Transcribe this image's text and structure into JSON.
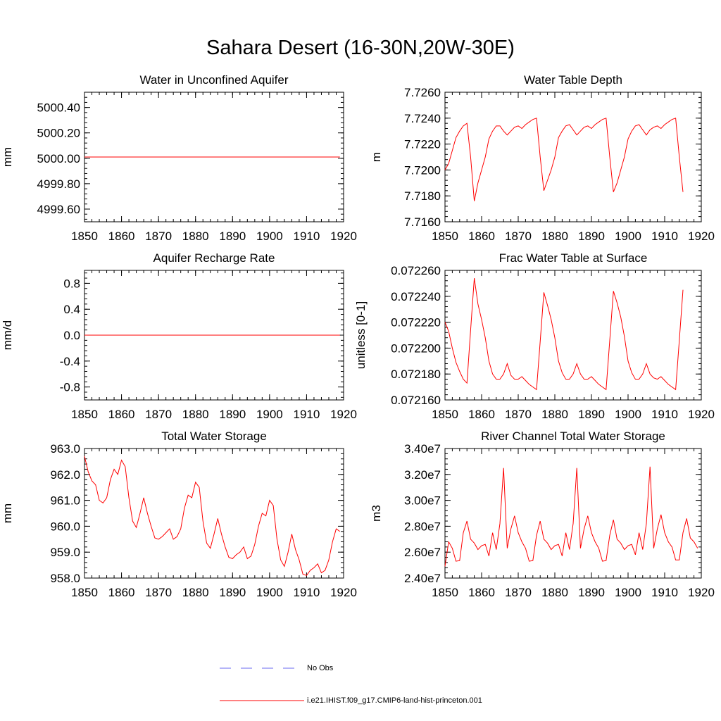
{
  "title": "Sahara Desert (16-30N,20W-30E)",
  "colors": {
    "model": "#ff0000",
    "obs": "#6a6af0",
    "axis": "#000000"
  },
  "legend": {
    "obs_label": "No Obs",
    "model_label": "i.e21.IHIST.f09_g17.CMIP6-land-hist-princeton.001"
  },
  "chart_data": [
    {
      "type": "line",
      "title": "Water in Unconfined Aquifer",
      "xlabel": "",
      "ylabel": "mm",
      "xlim": [
        1850,
        1920
      ],
      "ylim": [
        4999.5,
        5000.52
      ],
      "xticks": [
        1850,
        1860,
        1870,
        1880,
        1890,
        1900,
        1910,
        1920
      ],
      "xtick_labels": [
        "1850",
        "1860",
        "1870",
        "1880",
        "1890",
        "1900",
        "1910",
        "1920"
      ],
      "yticks": [
        4999.6,
        4999.8,
        5000.0,
        5000.2,
        5000.4
      ],
      "ytick_labels": [
        "4999.60",
        "4999.80",
        "5000.00",
        "5000.20",
        "5000.40"
      ],
      "series": [
        {
          "x_start": 1850,
          "values": [
            5000.01,
            5000.01,
            5000.01,
            5000.01,
            5000.01,
            5000.01,
            5000.01,
            5000.01,
            5000.01,
            5000.01,
            5000.01,
            5000.01,
            5000.01,
            5000.01,
            5000.01,
            5000.01,
            5000.01,
            5000.01,
            5000.01,
            5000.01,
            5000.01,
            5000.01,
            5000.01,
            5000.01,
            5000.01,
            5000.01,
            5000.01,
            5000.01,
            5000.01,
            5000.01,
            5000.01,
            5000.01,
            5000.01,
            5000.01,
            5000.01,
            5000.01,
            5000.01,
            5000.01,
            5000.01,
            5000.01,
            5000.01,
            5000.01,
            5000.01,
            5000.01,
            5000.01,
            5000.01,
            5000.01,
            5000.01,
            5000.01,
            5000.01,
            5000.01,
            5000.01,
            5000.01,
            5000.01,
            5000.01,
            5000.01,
            5000.01,
            5000.01,
            5000.01,
            5000.01,
            5000.01,
            5000.01,
            5000.01,
            5000.01,
            5000.01,
            5000.01,
            5000.01,
            5000.01,
            5000.01,
            5000.01
          ]
        }
      ]
    },
    {
      "type": "line",
      "title": "Water Table Depth",
      "xlabel": "",
      "ylabel": "m",
      "xlim": [
        1850,
        1920
      ],
      "ylim": [
        7.716,
        7.726
      ],
      "xticks": [
        1850,
        1860,
        1870,
        1880,
        1890,
        1900,
        1910,
        1920
      ],
      "xtick_labels": [
        "1850",
        "1860",
        "1870",
        "1880",
        "1890",
        "1900",
        "1910",
        "1920"
      ],
      "yticks": [
        7.716,
        7.718,
        7.72,
        7.722,
        7.724,
        7.726
      ],
      "ytick_labels": [
        "7.7160",
        "7.7180",
        "7.7200",
        "7.7220",
        "7.7240",
        "7.7260"
      ],
      "series": [
        {
          "x_start": 1850,
          "values": [
            7.72,
            7.7205,
            7.7215,
            7.7225,
            7.723,
            7.7234,
            7.7236,
            7.721,
            7.7176,
            7.719,
            7.72,
            7.721,
            7.7224,
            7.723,
            7.7234,
            7.7234,
            7.723,
            7.7227,
            7.723,
            7.7233,
            7.7234,
            7.7232,
            7.7235,
            7.7237,
            7.7239,
            7.724,
            7.721,
            7.7184,
            7.7192,
            7.72,
            7.721,
            7.7225,
            7.723,
            7.7234,
            7.7235,
            7.7231,
            7.7227,
            7.723,
            7.7233,
            7.7234,
            7.7232,
            7.7235,
            7.7237,
            7.7239,
            7.724,
            7.721,
            7.7183,
            7.719,
            7.72,
            7.721,
            7.7224,
            7.723,
            7.7234,
            7.7235,
            7.7231,
            7.7227,
            7.7231,
            7.7233,
            7.7234,
            7.7232,
            7.7235,
            7.7237,
            7.7239,
            7.724,
            7.721,
            7.7183
          ]
        }
      ]
    },
    {
      "type": "line",
      "title": "Aquifer Recharge Rate",
      "xlabel": "",
      "ylabel": "mm/d",
      "xlim": [
        1850,
        1920
      ],
      "ylim": [
        -1.0,
        1.0
      ],
      "xticks": [
        1850,
        1860,
        1870,
        1880,
        1890,
        1900,
        1910,
        1920
      ],
      "xtick_labels": [
        "1850",
        "1860",
        "1870",
        "1880",
        "1890",
        "1900",
        "1910",
        "1920"
      ],
      "yticks": [
        -0.8,
        -0.4,
        0.0,
        0.4,
        0.8
      ],
      "ytick_labels": [
        "-0.8",
        "-0.4",
        "0.0",
        "0.4",
        "0.8"
      ],
      "series": [
        {
          "x_start": 1850,
          "values": [
            0,
            0,
            0,
            0,
            0,
            0,
            0,
            0,
            0,
            0,
            0,
            0,
            0,
            0,
            0,
            0,
            0,
            0,
            0,
            0,
            0,
            0,
            0,
            0,
            0,
            0,
            0,
            0,
            0,
            0,
            0,
            0,
            0,
            0,
            0,
            0,
            0,
            0,
            0,
            0,
            0,
            0,
            0,
            0,
            0,
            0,
            0,
            0,
            0,
            0,
            0,
            0,
            0,
            0,
            0,
            0,
            0,
            0,
            0,
            0,
            0,
            0,
            0,
            0,
            0,
            0,
            0,
            0,
            0,
            0
          ]
        }
      ]
    },
    {
      "type": "line",
      "title": "Frac Water Table at Surface",
      "xlabel": "",
      "ylabel": "unitless [0-1]",
      "xlim": [
        1850,
        1920
      ],
      "ylim": [
        0.07216,
        0.07226
      ],
      "xticks": [
        1850,
        1860,
        1870,
        1880,
        1890,
        1900,
        1910,
        1920
      ],
      "xtick_labels": [
        "1850",
        "1860",
        "1870",
        "1880",
        "1890",
        "1900",
        "1910",
        "1920"
      ],
      "yticks": [
        0.07216,
        0.07218,
        0.0722,
        0.07222,
        0.07224,
        0.07226
      ],
      "ytick_labels": [
        "0.072160",
        "0.072180",
        "0.072200",
        "0.072220",
        "0.072240",
        "0.072260"
      ],
      "series": [
        {
          "x_start": 1850,
          "values": [
            0.07222,
            0.072213,
            0.0722,
            0.072189,
            0.072182,
            0.072176,
            0.072173,
            0.072214,
            0.072254,
            0.072234,
            0.072222,
            0.072208,
            0.07219,
            0.07218,
            0.072176,
            0.072176,
            0.07218,
            0.072188,
            0.072179,
            0.072176,
            0.072176,
            0.072178,
            0.072175,
            0.072172,
            0.07217,
            0.072168,
            0.072205,
            0.072243,
            0.072233,
            0.072222,
            0.072208,
            0.07219,
            0.072181,
            0.072176,
            0.072176,
            0.07218,
            0.072188,
            0.07218,
            0.072176,
            0.072176,
            0.072178,
            0.072175,
            0.072172,
            0.07217,
            0.072168,
            0.072206,
            0.072244,
            0.072235,
            0.072224,
            0.072209,
            0.07219,
            0.072181,
            0.072176,
            0.072176,
            0.07218,
            0.072188,
            0.07218,
            0.072177,
            0.072176,
            0.072178,
            0.072175,
            0.072172,
            0.07217,
            0.072168,
            0.072206,
            0.072245
          ]
        }
      ]
    },
    {
      "type": "line",
      "title": "Total Water Storage",
      "xlabel": "",
      "ylabel": "mm",
      "xlim": [
        1850,
        1920
      ],
      "ylim": [
        958.0,
        963.0
      ],
      "xticks": [
        1850,
        1860,
        1870,
        1880,
        1890,
        1900,
        1910,
        1920
      ],
      "xtick_labels": [
        "1850",
        "1860",
        "1870",
        "1880",
        "1890",
        "1900",
        "1910",
        "1920"
      ],
      "yticks": [
        958.0,
        959.0,
        960.0,
        961.0,
        962.0,
        963.0
      ],
      "ytick_labels": [
        "958.0",
        "959.0",
        "960.0",
        "961.0",
        "962.0",
        "963.0"
      ],
      "series": [
        {
          "x_start": 1850,
          "values": [
            962.7,
            962.1,
            961.75,
            961.6,
            961.0,
            960.9,
            961.1,
            961.8,
            962.2,
            962.0,
            962.55,
            962.3,
            961.1,
            960.2,
            959.95,
            960.5,
            961.1,
            960.5,
            960.0,
            959.55,
            959.5,
            959.6,
            959.75,
            959.9,
            959.5,
            959.6,
            959.9,
            960.7,
            961.2,
            961.1,
            961.7,
            961.5,
            960.2,
            959.35,
            959.15,
            959.7,
            960.3,
            959.7,
            959.2,
            958.8,
            958.75,
            958.9,
            959.0,
            959.2,
            958.75,
            958.85,
            959.3,
            960.0,
            960.5,
            960.4,
            961.0,
            960.8,
            959.5,
            958.7,
            958.45,
            959.0,
            959.7,
            959.1,
            958.7,
            958.15,
            958.1,
            958.3,
            958.4,
            958.55,
            958.2,
            958.3,
            958.7,
            959.4,
            959.9,
            959.8
          ]
        }
      ]
    },
    {
      "type": "line",
      "title": "River Channel Total Water Storage",
      "xlabel": "",
      "ylabel": "m3",
      "xlim": [
        1850,
        1920
      ],
      "ylim": [
        24000000,
        34000000
      ],
      "xticks": [
        1850,
        1860,
        1870,
        1880,
        1890,
        1900,
        1910,
        1920
      ],
      "xtick_labels": [
        "1850",
        "1860",
        "1870",
        "1880",
        "1890",
        "1900",
        "1910",
        "1920"
      ],
      "yticks": [
        24000000,
        26000000,
        28000000,
        30000000,
        32000000,
        34000000
      ],
      "ytick_labels": [
        "2.40e7",
        "2.60e7",
        "2.80e7",
        "3.00e7",
        "3.20e7",
        "3.40e7"
      ],
      "series": [
        {
          "x_start": 1850,
          "values": [
            24900000,
            26800000,
            26300000,
            25300000,
            25350000,
            27500000,
            28400000,
            27000000,
            26700000,
            26200000,
            26500000,
            26600000,
            25700000,
            27500000,
            26200000,
            28200000,
            32500000,
            26300000,
            27800000,
            28800000,
            27500000,
            26800000,
            26300000,
            25300000,
            25350000,
            27300000,
            28400000,
            27000000,
            26700000,
            26200000,
            26500000,
            26600000,
            25700000,
            27500000,
            26200000,
            28200000,
            32500000,
            26300000,
            27800000,
            28800000,
            27500000,
            26800000,
            26300000,
            25300000,
            25350000,
            27300000,
            28500000,
            27000000,
            26700000,
            26200000,
            26500000,
            26600000,
            25800000,
            27500000,
            26200000,
            28200000,
            32600000,
            26300000,
            27800000,
            28900000,
            27500000,
            26800000,
            26400000,
            25400000,
            25400000,
            27500000,
            28600000,
            27100000,
            26800000,
            26300000
          ]
        }
      ]
    }
  ]
}
